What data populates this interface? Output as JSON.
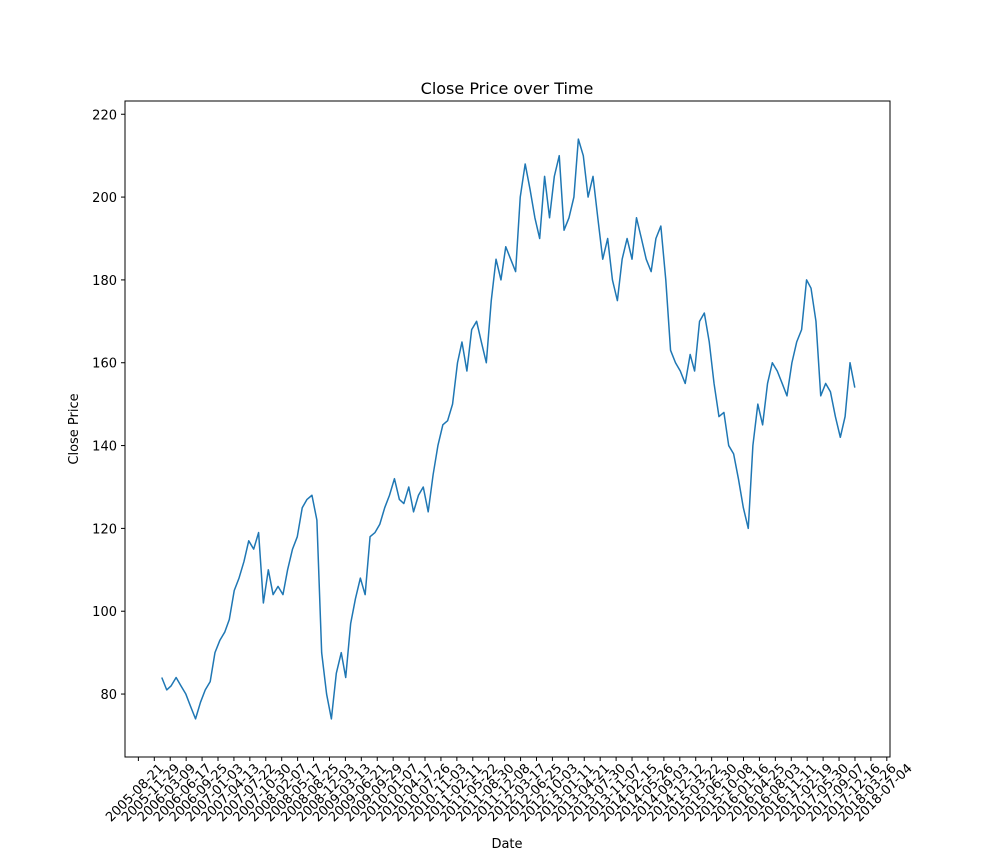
{
  "chart_data": {
    "type": "line",
    "title": "Close Price over Time",
    "x_label": "Date",
    "y_label": "Close Price",
    "x": [
      "2006-01-15",
      "2006-02-15",
      "2006-03-15",
      "2006-04-15",
      "2006-05-15",
      "2006-06-15",
      "2006-07-15",
      "2006-08-15",
      "2006-09-15",
      "2006-10-15",
      "2006-11-15",
      "2006-12-15",
      "2007-01-15",
      "2007-02-15",
      "2007-03-15",
      "2007-04-15",
      "2007-05-15",
      "2007-06-15",
      "2007-07-15",
      "2007-08-15",
      "2007-09-15",
      "2007-10-15",
      "2007-11-15",
      "2007-12-15",
      "2008-01-15",
      "2008-02-15",
      "2008-03-15",
      "2008-04-15",
      "2008-05-15",
      "2008-06-15",
      "2008-07-15",
      "2008-08-15",
      "2008-09-15",
      "2008-10-15",
      "2008-11-15",
      "2008-12-15",
      "2009-01-15",
      "2009-02-15",
      "2009-03-15",
      "2009-04-15",
      "2009-05-15",
      "2009-06-15",
      "2009-07-15",
      "2009-08-15",
      "2009-09-15",
      "2009-10-15",
      "2009-11-15",
      "2009-12-15",
      "2010-01-15",
      "2010-02-15",
      "2010-03-15",
      "2010-04-15",
      "2010-05-15",
      "2010-06-15",
      "2010-07-15",
      "2010-08-15",
      "2010-09-15",
      "2010-10-15",
      "2010-11-15",
      "2010-12-15",
      "2011-01-15",
      "2011-02-15",
      "2011-03-15",
      "2011-04-15",
      "2011-05-15",
      "2011-06-15",
      "2011-07-15",
      "2011-08-15",
      "2011-09-15",
      "2011-10-15",
      "2011-11-15",
      "2011-12-15",
      "2012-01-15",
      "2012-02-15",
      "2012-03-15",
      "2012-04-15",
      "2012-05-15",
      "2012-06-15",
      "2012-07-15",
      "2012-08-15",
      "2012-09-15",
      "2012-10-15",
      "2012-11-15",
      "2012-12-15",
      "2013-01-15",
      "2013-02-15",
      "2013-03-15",
      "2013-04-15",
      "2013-05-15",
      "2013-06-15",
      "2013-07-15",
      "2013-08-15",
      "2013-09-15",
      "2013-10-15",
      "2013-11-15",
      "2013-12-15",
      "2014-01-15",
      "2014-02-15",
      "2014-03-15",
      "2014-04-15",
      "2014-05-15",
      "2014-06-15",
      "2014-07-15",
      "2014-08-15",
      "2014-09-15",
      "2014-10-15",
      "2014-11-15",
      "2014-12-15",
      "2015-01-15",
      "2015-02-15",
      "2015-03-15",
      "2015-04-15",
      "2015-05-15",
      "2015-06-15",
      "2015-07-15",
      "2015-08-15",
      "2015-09-15",
      "2015-10-15",
      "2015-11-15",
      "2015-12-15",
      "2016-01-15",
      "2016-02-15",
      "2016-03-15",
      "2016-04-15",
      "2016-05-15",
      "2016-06-15",
      "2016-07-15",
      "2016-08-15",
      "2016-09-15",
      "2016-10-15",
      "2016-11-15",
      "2016-12-15",
      "2017-01-15",
      "2017-02-15",
      "2017-03-15",
      "2017-04-15",
      "2017-05-15",
      "2017-06-15",
      "2017-07-15",
      "2017-08-15",
      "2017-09-15",
      "2017-10-15",
      "2017-11-15",
      "2017-12-15"
    ],
    "series": [
      {
        "name": "Close",
        "color": "#1f77b4",
        "values": [
          84,
          81,
          82,
          84,
          82,
          80,
          77,
          74,
          78,
          81,
          83,
          90,
          93,
          95,
          98,
          105,
          108,
          112,
          117,
          115,
          119,
          102,
          110,
          104,
          106,
          104,
          110,
          115,
          118,
          125,
          127,
          128,
          122,
          90,
          80,
          74,
          85,
          90,
          84,
          97,
          103,
          108,
          104,
          118,
          119,
          121,
          125,
          128,
          132,
          127,
          126,
          130,
          124,
          128,
          130,
          124,
          133,
          140,
          145,
          146,
          150,
          160,
          165,
          158,
          168,
          170,
          165,
          160,
          175,
          185,
          180,
          188,
          185,
          182,
          200,
          208,
          202,
          195,
          190,
          205,
          195,
          205,
          210,
          192,
          195,
          200,
          214,
          210,
          200,
          205,
          195,
          185,
          190,
          180,
          175,
          185,
          190,
          185,
          195,
          190,
          185,
          182,
          190,
          193,
          180,
          163,
          160,
          158,
          155,
          162,
          158,
          170,
          172,
          165,
          155,
          147,
          148,
          140,
          138,
          132,
          125,
          120,
          140,
          150,
          145,
          155,
          160,
          158,
          155,
          152,
          160,
          165,
          168,
          180,
          178,
          170,
          152,
          155,
          153,
          147,
          142,
          147,
          160,
          154
        ]
      }
    ],
    "xlim": [
      "2005-05-29",
      "2018-07-24"
    ],
    "xticks": [
      "2005-08-21",
      "2005-11-29",
      "2006-03-09",
      "2006-06-17",
      "2006-09-25",
      "2007-01-03",
      "2007-04-13",
      "2007-07-22",
      "2007-10-30",
      "2008-02-07",
      "2008-05-17",
      "2008-08-25",
      "2008-12-03",
      "2009-03-13",
      "2009-06-21",
      "2009-09-29",
      "2010-01-07",
      "2010-04-17",
      "2010-07-26",
      "2010-11-03",
      "2011-02-11",
      "2011-05-22",
      "2011-08-30",
      "2011-12-08",
      "2012-03-17",
      "2012-06-25",
      "2012-10-03",
      "2013-01-11",
      "2013-04-21",
      "2013-07-30",
      "2013-11-07",
      "2014-02-15",
      "2014-05-26",
      "2014-09-03",
      "2014-12-12",
      "2015-03-22",
      "2015-06-30",
      "2015-10-08",
      "2016-01-16",
      "2016-04-25",
      "2016-08-03",
      "2016-11-11",
      "2017-02-19",
      "2017-05-30",
      "2017-09-07",
      "2017-12-16",
      "2018-03-26",
      "2018-07-04"
    ],
    "ylim": [
      64.8,
      223.2
    ],
    "yticks": [
      80,
      100,
      120,
      140,
      160,
      180,
      200,
      220
    ],
    "grid": false
  }
}
